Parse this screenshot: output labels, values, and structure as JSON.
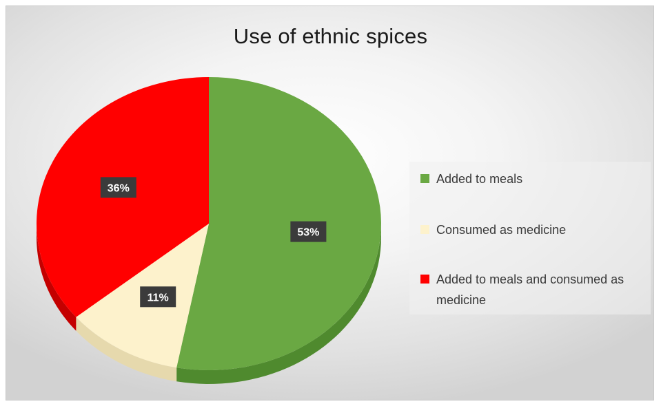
{
  "chart_data": {
    "type": "pie",
    "title": "Use of ethnic spices",
    "labels": [
      "Added to meals",
      "Consumed as medicine",
      "Added to meals and consumed as medicine"
    ],
    "values": [
      53,
      11,
      36
    ],
    "data_labels": [
      "53%",
      "11%",
      "36%"
    ],
    "colors": [
      "#6aa843",
      "#fdf2cc",
      "#ff0000"
    ],
    "side_colors": [
      "#4f8a2e",
      "#e6d9ad",
      "#c40000"
    ],
    "legend_position": "right",
    "start_angle_deg": 0,
    "direction": "clockwise",
    "style": "3d"
  }
}
